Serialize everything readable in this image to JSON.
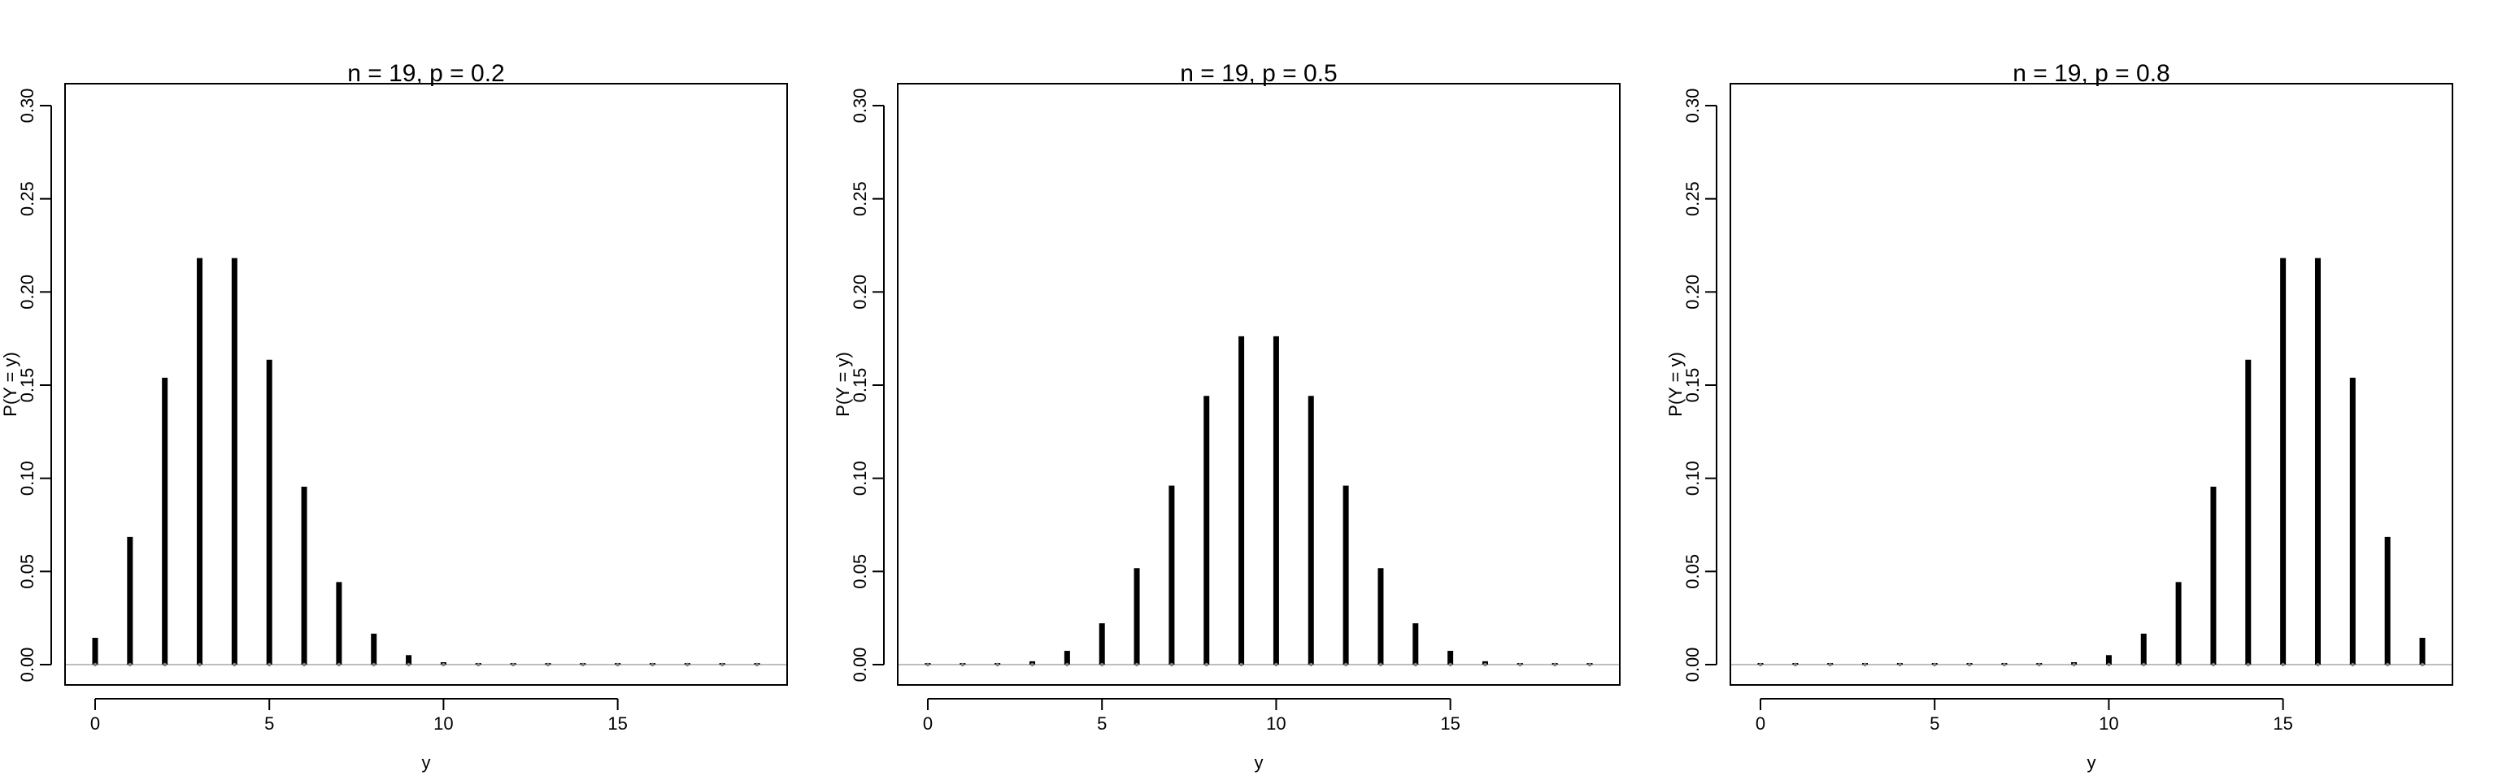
{
  "chart_data": [
    {
      "type": "bar",
      "title": "n = 19, p = 0.2",
      "xlabel": "y",
      "ylabel": "P(Y = y)",
      "x": [
        0,
        1,
        2,
        3,
        4,
        5,
        6,
        7,
        8,
        9,
        10,
        11,
        12,
        13,
        14,
        15,
        16,
        17,
        18,
        19
      ],
      "values": [
        0.0144,
        0.0685,
        0.154,
        0.2182,
        0.2182,
        0.1636,
        0.0955,
        0.0443,
        0.0166,
        0.0051,
        0.0013,
        0.0003,
        0.0,
        0.0,
        0.0,
        0.0,
        0.0,
        0.0,
        0.0,
        0.0
      ],
      "xlim": [
        0,
        19
      ],
      "ylim": [
        0,
        0.3
      ],
      "xticks": [
        0,
        5,
        10,
        15
      ],
      "xtick_labels": [
        "0",
        "5",
        "10",
        "15"
      ],
      "yticks": [
        0,
        0.05,
        0.1,
        0.15,
        0.2,
        0.25,
        0.3
      ],
      "ytick_labels": [
        "0.00",
        "0.05",
        "0.10",
        "0.15",
        "0.20",
        "0.25",
        "0.30"
      ],
      "reference_line_y": 0,
      "grid": false,
      "bar_color": "#000000",
      "reference_line_color": "#bebebe"
    },
    {
      "type": "bar",
      "title": "n = 19, p = 0.5",
      "xlabel": "y",
      "ylabel": "P(Y = y)",
      "x": [
        0,
        1,
        2,
        3,
        4,
        5,
        6,
        7,
        8,
        9,
        10,
        11,
        12,
        13,
        14,
        15,
        16,
        17,
        18,
        19
      ],
      "values": [
        0.0,
        0.0,
        0.0003,
        0.0018,
        0.0074,
        0.0222,
        0.0518,
        0.0961,
        0.1442,
        0.1762,
        0.1762,
        0.1442,
        0.0961,
        0.0518,
        0.0222,
        0.0074,
        0.0018,
        0.0003,
        0.0,
        0.0
      ],
      "xlim": [
        0,
        19
      ],
      "ylim": [
        0,
        0.3
      ],
      "xticks": [
        0,
        5,
        10,
        15
      ],
      "xtick_labels": [
        "0",
        "5",
        "10",
        "15"
      ],
      "yticks": [
        0,
        0.05,
        0.1,
        0.15,
        0.2,
        0.25,
        0.3
      ],
      "ytick_labels": [
        "0.00",
        "0.05",
        "0.10",
        "0.15",
        "0.20",
        "0.25",
        "0.30"
      ],
      "reference_line_y": 0,
      "grid": false,
      "bar_color": "#000000",
      "reference_line_color": "#bebebe"
    },
    {
      "type": "bar",
      "title": "n = 19, p = 0.8",
      "xlabel": "y",
      "ylabel": "P(Y = y)",
      "x": [
        0,
        1,
        2,
        3,
        4,
        5,
        6,
        7,
        8,
        9,
        10,
        11,
        12,
        13,
        14,
        15,
        16,
        17,
        18,
        19
      ],
      "values": [
        0.0,
        0.0,
        0.0,
        0.0,
        0.0,
        0.0,
        0.0,
        0.0,
        0.0003,
        0.0013,
        0.0051,
        0.0166,
        0.0443,
        0.0955,
        0.1636,
        0.2182,
        0.2182,
        0.154,
        0.0685,
        0.0144
      ],
      "xlim": [
        0,
        19
      ],
      "ylim": [
        0,
        0.3
      ],
      "xticks": [
        0,
        5,
        10,
        15
      ],
      "xtick_labels": [
        "0",
        "5",
        "10",
        "15"
      ],
      "yticks": [
        0,
        0.05,
        0.1,
        0.15,
        0.2,
        0.25,
        0.3
      ],
      "ytick_labels": [
        "0.00",
        "0.05",
        "0.10",
        "0.15",
        "0.20",
        "0.25",
        "0.30"
      ],
      "reference_line_y": 0,
      "grid": false,
      "bar_color": "#000000",
      "reference_line_color": "#bebebe"
    }
  ]
}
